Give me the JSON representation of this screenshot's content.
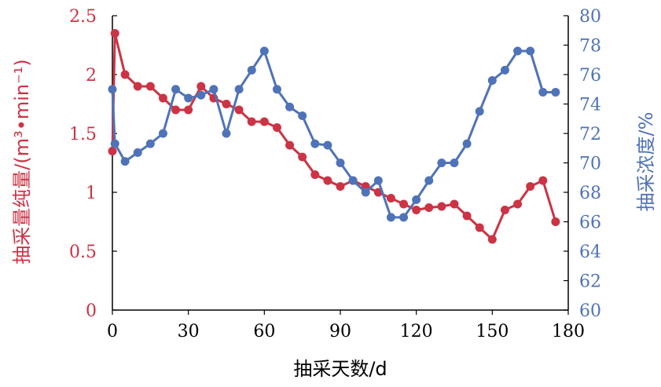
{
  "chart_data": {
    "type": "line",
    "xlabel": "抽采天数/d",
    "ylabel_left": "抽采量纯量/(m³•min⁻¹)",
    "ylabel_right": "抽采浓度/%",
    "x_ticks": [
      "0",
      "30",
      "60",
      "90",
      "120",
      "150",
      "180"
    ],
    "y_left_ticks": [
      "0",
      "0.5",
      "1",
      "1.5",
      "2",
      "2.5"
    ],
    "y_right_ticks": [
      "60",
      "62",
      "64",
      "66",
      "68",
      "70",
      "72",
      "74",
      "76",
      "78",
      "80"
    ],
    "xlim": [
      0,
      180
    ],
    "ylim_left": [
      0,
      2.5
    ],
    "ylim_right": [
      60,
      80
    ],
    "grid": false,
    "colors": {
      "left": "#cc3344",
      "right": "#4f73b8",
      "axis": "#000000"
    },
    "series": [
      {
        "axis": "left",
        "color": "#cc3344",
        "x": [
          0,
          1,
          5,
          10,
          15,
          20,
          25,
          30,
          35,
          40,
          45,
          50,
          55,
          60,
          65,
          70,
          75,
          80,
          85,
          90,
          95,
          100,
          105,
          110,
          115,
          120,
          125,
          130,
          135,
          140,
          145,
          150,
          155,
          160,
          165,
          170,
          175
        ],
        "values": [
          1.35,
          2.35,
          2.0,
          1.9,
          1.9,
          1.8,
          1.7,
          1.7,
          1.9,
          1.8,
          1.75,
          1.7,
          1.6,
          1.6,
          1.55,
          1.4,
          1.3,
          1.15,
          1.1,
          1.05,
          1.1,
          1.05,
          1.0,
          0.95,
          0.9,
          0.85,
          0.87,
          0.88,
          0.9,
          0.8,
          0.7,
          0.6,
          0.85,
          0.9,
          1.05,
          1.1,
          0.75
        ]
      },
      {
        "axis": "right",
        "color": "#4f73b8",
        "x": [
          0,
          1,
          5,
          10,
          15,
          20,
          25,
          30,
          35,
          40,
          45,
          50,
          55,
          60,
          65,
          70,
          75,
          80,
          85,
          90,
          95,
          100,
          105,
          110,
          115,
          120,
          125,
          130,
          135,
          140,
          145,
          150,
          155,
          160,
          165,
          170,
          175
        ],
        "values": [
          75.0,
          71.3,
          70.1,
          70.7,
          71.3,
          72.0,
          75.0,
          74.4,
          74.6,
          75.0,
          72.0,
          75.0,
          76.3,
          77.6,
          75.0,
          73.8,
          73.2,
          71.3,
          71.2,
          70.0,
          68.8,
          68.0,
          68.8,
          66.3,
          66.3,
          67.5,
          68.8,
          70.0,
          70.0,
          71.3,
          73.5,
          75.6,
          76.3,
          77.6,
          77.6,
          74.8,
          74.8
        ]
      }
    ]
  }
}
